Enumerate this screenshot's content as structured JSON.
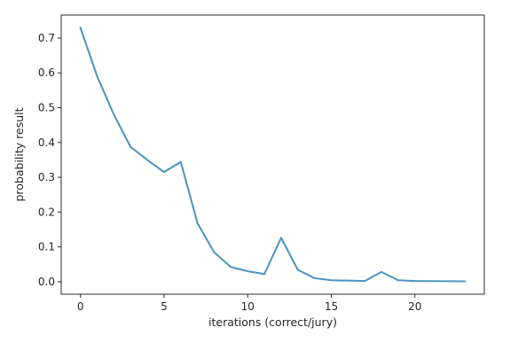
{
  "chart_data": {
    "type": "line",
    "title": "",
    "xlabel": "iterations (correct/jury)",
    "ylabel": "probability result",
    "xlim": [
      -1.15,
      24.15
    ],
    "ylim": [
      -0.036,
      0.766
    ],
    "xticks": [
      0,
      5,
      10,
      15,
      20
    ],
    "yticks": [
      0.0,
      0.1,
      0.2,
      0.3,
      0.4,
      0.5,
      0.6,
      0.7
    ],
    "grid": false,
    "legend": "none",
    "series": [
      {
        "color": "#4c92c3",
        "x": [
          0,
          1,
          2,
          3,
          4,
          5,
          6,
          7,
          8,
          9,
          10,
          11,
          12,
          13,
          14,
          15,
          16,
          17,
          18,
          19,
          20,
          21,
          22,
          23
        ],
        "y": [
          0.73,
          0.59,
          0.48,
          0.387,
          0.35,
          0.315,
          0.344,
          0.168,
          0.084,
          0.042,
          0.03,
          0.022,
          0.126,
          0.034,
          0.01,
          0.004,
          0.003,
          0.002,
          0.028,
          0.004,
          0.002,
          0.0015,
          0.0012,
          0.001
        ]
      }
    ]
  }
}
